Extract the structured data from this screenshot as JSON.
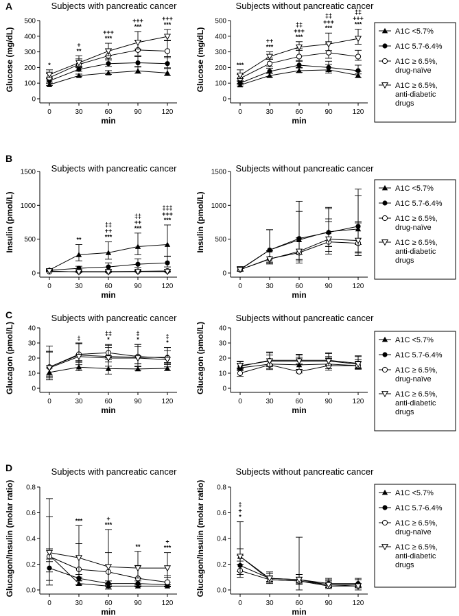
{
  "x_values": [
    0,
    30,
    60,
    90,
    120
  ],
  "xlabel": "min",
  "legend": [
    {
      "marker": "tri-up",
      "lines": [
        "A1C <5.7%"
      ]
    },
    {
      "marker": "circle-filled",
      "lines": [
        "A1C 5.7-6.4%"
      ]
    },
    {
      "marker": "circle-open",
      "lines": [
        "A1C ≥ 6.5%,",
        "drug-naïve"
      ]
    },
    {
      "marker": "tri-down-open",
      "lines": [
        "A1C ≥ 6.5%,",
        "anti-diabetic",
        "drugs"
      ]
    }
  ],
  "chart_data": [
    {
      "type": "line",
      "panel": "A",
      "title": "Subjects with pancreatic cancer",
      "ylabel": "Glucose (mg/dL)",
      "ylim": [
        0,
        500
      ],
      "yticks": [
        0,
        100,
        200,
        300,
        400,
        500
      ],
      "series": [
        {
          "name": "A1C <5.7%",
          "values": [
            90,
            148,
            165,
            178,
            165
          ],
          "err": [
            8,
            10,
            15,
            25,
            28
          ]
        },
        {
          "name": "A1C 5.7-6.4%",
          "values": [
            115,
            188,
            225,
            230,
            225
          ],
          "err": [
            15,
            20,
            30,
            40,
            45
          ]
        },
        {
          "name": "A1C ≥ 6.5%, drug-naïve",
          "values": [
            135,
            220,
            275,
            312,
            305
          ],
          "err": [
            25,
            35,
            45,
            60,
            70
          ]
        },
        {
          "name": "A1C ≥ 6.5%, anti-diabetic drugs",
          "values": [
            155,
            230,
            305,
            360,
            398
          ],
          "err": [
            30,
            45,
            50,
            70,
            45
          ]
        }
      ],
      "annotations": [
        [
          "*"
        ],
        [
          "+",
          "**"
        ],
        [
          "+++",
          "***"
        ],
        [
          "+++",
          "***"
        ],
        [
          "+++",
          "***"
        ]
      ]
    },
    {
      "type": "line",
      "panel": "A",
      "title": "Subjects without pancreatic cancer",
      "ylabel": "Glucose (mg/dL)",
      "ylim": [
        0,
        500
      ],
      "yticks": [
        0,
        100,
        200,
        300,
        400,
        500
      ],
      "series": [
        {
          "name": "A1C <5.7%",
          "values": [
            88,
            148,
            180,
            185,
            150
          ],
          "err": [
            10,
            15,
            20,
            35,
            25
          ]
        },
        {
          "name": "A1C 5.7-6.4%",
          "values": [
            100,
            175,
            215,
            200,
            180
          ],
          "err": [
            12,
            20,
            30,
            40,
            35
          ]
        },
        {
          "name": "A1C ≥ 6.5%, drug-naïve",
          "values": [
            130,
            225,
            270,
            295,
            270
          ],
          "err": [
            25,
            35,
            50,
            60,
            40
          ]
        },
        {
          "name": "A1C ≥ 6.5%, anti-diabetic drugs",
          "values": [
            150,
            270,
            330,
            350,
            385
          ],
          "err": [
            35,
            30,
            35,
            70,
            60
          ]
        }
      ],
      "annotations": [
        [
          "***"
        ],
        [
          "++",
          "***"
        ],
        [
          "‡‡",
          "+++",
          "***"
        ],
        [
          "‡‡",
          "+++",
          "***"
        ],
        [
          "‡‡",
          "+++",
          "***"
        ]
      ]
    },
    {
      "type": "line",
      "panel": "B",
      "title": "Subjects with pancreatic cancer",
      "ylabel": "Insulin (pmol/L)",
      "ylim": [
        0,
        1500
      ],
      "yticks": [
        0,
        500,
        1000,
        1500
      ],
      "series": [
        {
          "name": "A1C <5.7%",
          "values": [
            45,
            270,
            300,
            390,
            420
          ],
          "err": [
            15,
            150,
            160,
            200,
            290
          ]
        },
        {
          "name": "A1C 5.7-6.4%",
          "values": [
            40,
            70,
            90,
            130,
            150
          ],
          "err": [
            10,
            30,
            60,
            80,
            100
          ]
        },
        {
          "name": "A1C ≥ 6.5%, drug-naïve",
          "values": [
            20,
            20,
            20,
            25,
            30
          ],
          "err": [
            5,
            10,
            10,
            15,
            20
          ]
        },
        {
          "name": "A1C ≥ 6.5%, anti-diabetic drugs",
          "values": [
            30,
            15,
            15,
            20,
            20
          ],
          "err": [
            10,
            10,
            10,
            10,
            10
          ]
        }
      ],
      "annotations": [
        [],
        [
          "**"
        ],
        [
          "‡‡",
          "++",
          "***"
        ],
        [
          "‡‡",
          "++",
          "***"
        ],
        [
          "‡‡‡",
          "+++",
          "***"
        ]
      ]
    },
    {
      "type": "line",
      "panel": "B",
      "title": "Subjects without pancreatic cancer",
      "ylabel": "Insulin (pmol/L)",
      "ylim": [
        0,
        1500
      ],
      "yticks": [
        0,
        500,
        1000,
        1500
      ],
      "series": [
        {
          "name": "A1C <5.7%",
          "values": [
            55,
            340,
            490,
            610,
            650
          ],
          "err": [
            40,
            300,
            570,
            360,
            590
          ]
        },
        {
          "name": "A1C 5.7-6.4%",
          "values": [
            50,
            340,
            510,
            600,
            690
          ],
          "err": [
            40,
            300,
            400,
            350,
            450
          ]
        },
        {
          "name": "A1C ≥ 6.5%, drug-naïve",
          "values": [
            50,
            210,
            300,
            460,
            440
          ],
          "err": [
            40,
            120,
            200,
            300,
            300
          ]
        },
        {
          "name": "A1C ≥ 6.5%, anti-diabetic drugs",
          "values": [
            50,
            205,
            320,
            500,
            480
          ],
          "err": [
            40,
            120,
            200,
            300,
            280
          ]
        }
      ],
      "annotations": [
        [],
        [],
        [],
        [],
        []
      ]
    },
    {
      "type": "line",
      "panel": "C",
      "title": "Subjects with pancreatic cancer",
      "ylabel": "Glucagon (pmol/L)",
      "ylim": [
        0,
        40
      ],
      "yticks": [
        0,
        10,
        20,
        30,
        40
      ],
      "series": [
        {
          "name": "A1C <5.7%",
          "values": [
            10.5,
            14,
            13,
            12.8,
            13.2
          ],
          "err": [
            3,
            4,
            6,
            1.5,
            2.5
          ]
        },
        {
          "name": "A1C 5.7-6.4%",
          "values": [
            14,
            22,
            21,
            20.5,
            20.5
          ],
          "err": [
            10,
            8,
            6,
            7,
            6.5
          ]
        },
        {
          "name": "A1C ≥ 6.5%, drug-naïve",
          "values": [
            14,
            22.5,
            23.5,
            21,
            20
          ],
          "err": [
            14,
            7,
            5,
            8,
            5
          ]
        },
        {
          "name": "A1C ≥ 6.5%, anti-diabetic drugs",
          "values": [
            13.5,
            21,
            20,
            20,
            19
          ],
          "err": [
            11,
            9,
            9,
            9,
            8
          ]
        }
      ],
      "annotations": [
        [],
        [
          "‡"
        ],
        [
          "‡‡",
          "*"
        ],
        [
          "‡",
          "*"
        ],
        [
          "‡",
          "*"
        ]
      ]
    },
    {
      "type": "line",
      "panel": "C",
      "title": "Subjects without pancreatic cancer",
      "ylabel": "Glucagon (pmol/L)",
      "ylim": [
        0,
        40
      ],
      "yticks": [
        0,
        10,
        20,
        30,
        40
      ],
      "series": [
        {
          "name": "A1C <5.7%",
          "values": [
            13.5,
            16,
            15.5,
            16,
            15
          ],
          "err": [
            3,
            6,
            5,
            5,
            4
          ]
        },
        {
          "name": "A1C 5.7-6.4%",
          "values": [
            14.5,
            18.5,
            18.5,
            18.5,
            16.5
          ],
          "err": [
            3,
            5,
            4,
            5,
            5
          ]
        },
        {
          "name": "A1C ≥ 6.5%, drug-naïve",
          "values": [
            10,
            15.5,
            11,
            15,
            15
          ],
          "err": [
            3.5,
            4,
            1.5,
            5,
            3
          ]
        },
        {
          "name": "A1C ≥ 6.5%, anti-diabetic drugs",
          "values": [
            15,
            18,
            18,
            18,
            16
          ],
          "err": [
            3,
            6,
            4,
            5,
            5
          ]
        }
      ],
      "annotations": [
        [],
        [],
        [],
        [],
        []
      ]
    },
    {
      "type": "line",
      "panel": "D",
      "title": "Subjects with pancreatic cancer",
      "ylabel": "Glucagon/Insulin (molar ratio)",
      "ylim": [
        0,
        0.8
      ],
      "yticks": [
        "0.0",
        "0.2",
        "0.4",
        "0.6",
        "0.8"
      ],
      "series": [
        {
          "name": "A1C <5.7%",
          "values": [
            0.27,
            0.05,
            0.03,
            0.03,
            0.03
          ],
          "err": [
            0.05,
            0.02,
            0.01,
            0.01,
            0.01
          ]
        },
        {
          "name": "A1C 5.7-6.4%",
          "values": [
            0.17,
            0.09,
            0.05,
            0.05,
            0.04
          ],
          "err": [
            0.05,
            0.03,
            0.02,
            0.02,
            0.02
          ]
        },
        {
          "name": "A1C ≥ 6.5%, drug-naïve",
          "values": [
            0.26,
            0.16,
            0.14,
            0.09,
            0.06
          ],
          "err": [
            0.31,
            0.2,
            0.15,
            0.1,
            0.05
          ]
        },
        {
          "name": "A1C ≥ 6.5%, anti-diabetic drugs",
          "values": [
            0.29,
            0.25,
            0.18,
            0.17,
            0.17
          ],
          "err": [
            0.42,
            0.25,
            0.29,
            0.13,
            0.12
          ]
        }
      ],
      "annotations": [
        [],
        [
          "***"
        ],
        [
          "+",
          "***"
        ],
        [
          "**"
        ],
        [
          "+",
          "***"
        ]
      ]
    },
    {
      "type": "line",
      "panel": "D",
      "title": "Subjects without pancreatic cancer",
      "ylabel": "Glucagon/Insulin (molar ratio)",
      "ylim": [
        0,
        0.8
      ],
      "yticks": [
        "0.0",
        "0.2",
        "0.4",
        "0.6",
        "0.8"
      ],
      "series": [
        {
          "name": "A1C <5.7%",
          "values": [
            0.26,
            0.08,
            0.07,
            0.04,
            0.04
          ],
          "err": [
            0.06,
            0.05,
            0.05,
            0.03,
            0.04
          ]
        },
        {
          "name": "A1C 5.7-6.4%",
          "values": [
            0.19,
            0.09,
            0.08,
            0.05,
            0.05
          ],
          "err": [
            0.08,
            0.04,
            0.04,
            0.03,
            0.04
          ]
        },
        {
          "name": "A1C ≥ 6.5%, drug-naïve",
          "values": [
            0.15,
            0.08,
            0.07,
            0.03,
            0.03
          ],
          "err": [
            0.05,
            0.03,
            0.03,
            0.02,
            0.02
          ]
        },
        {
          "name": "A1C ≥ 6.5%, anti-diabetic drugs",
          "values": [
            0.26,
            0.09,
            0.08,
            0.04,
            0.03
          ],
          "err": [
            0.27,
            0.05,
            0.33,
            0.05,
            0.05
          ]
        }
      ],
      "annotations": [
        [
          "‡",
          "+",
          "*"
        ],
        [],
        [],
        [],
        []
      ]
    }
  ]
}
